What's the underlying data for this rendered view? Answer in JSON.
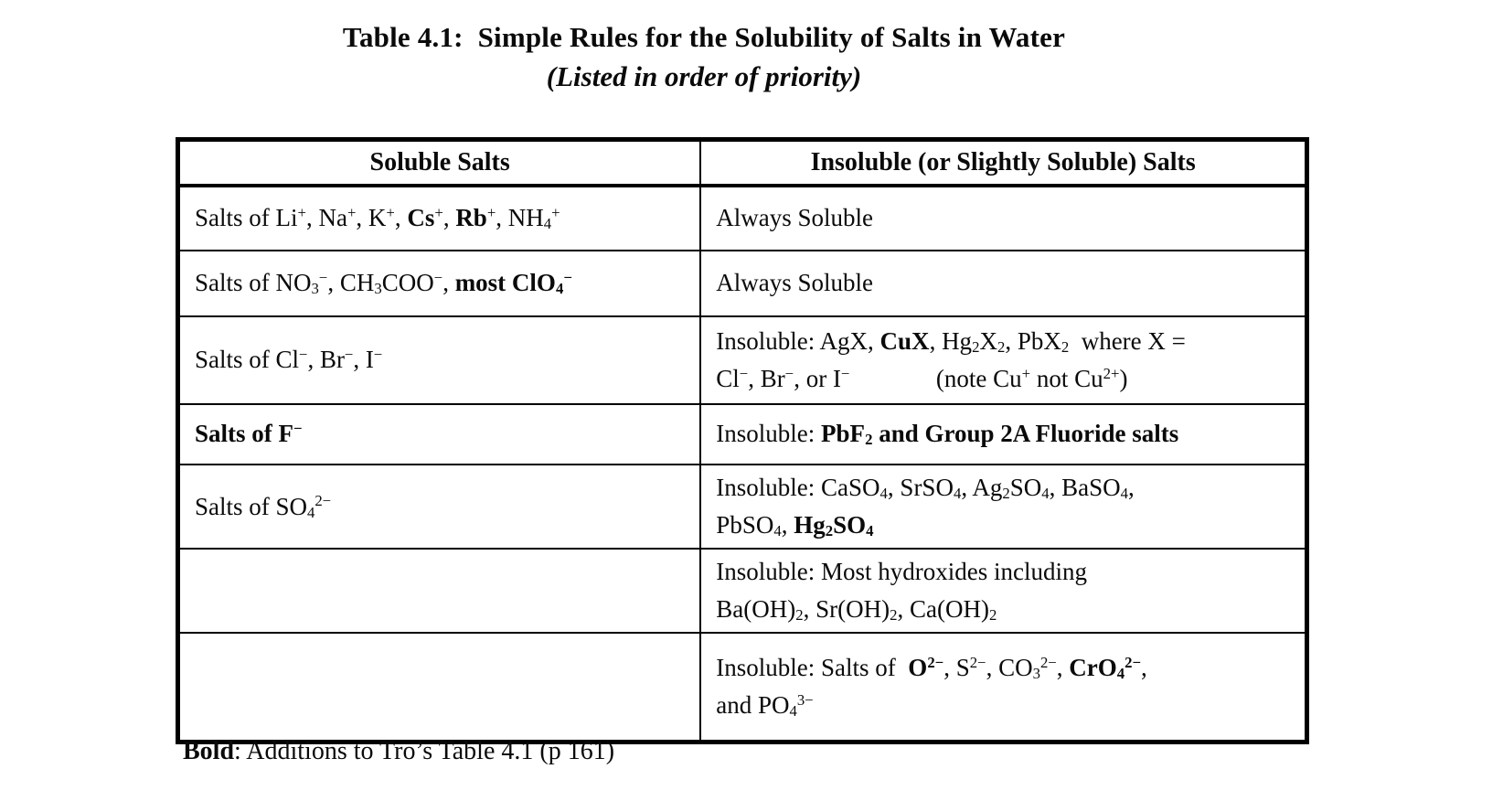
{
  "title": {
    "line1": "Table 4.1:  Simple Rules for the Solubility of Salts in Water",
    "line2": "(Listed in order of priority)"
  },
  "table": {
    "headers": [
      "Soluble Salts",
      "Insoluble (or Slightly Soluble) Salts"
    ],
    "rows": [
      {
        "left": [
          {
            "t": "Salts of Li"
          },
          {
            "t": "+",
            "sup": true
          },
          {
            "t": ", Na"
          },
          {
            "t": "+",
            "sup": true
          },
          {
            "t": ", K"
          },
          {
            "t": "+",
            "sup": true
          },
          {
            "t": ", "
          },
          {
            "t": "Cs",
            "b": true
          },
          {
            "t": "+",
            "sup": true
          },
          {
            "t": ", "
          },
          {
            "t": "Rb",
            "b": true
          },
          {
            "t": "+",
            "sup": true
          },
          {
            "t": ", NH"
          },
          {
            "t": "4",
            "sub": true
          },
          {
            "t": "+",
            "sup": true
          }
        ],
        "right": [
          {
            "t": "Always Soluble"
          }
        ]
      },
      {
        "left": [
          {
            "t": "Salts of NO"
          },
          {
            "t": "3",
            "sub": true
          },
          {
            "t": "−",
            "sup": true
          },
          {
            "t": ", CH"
          },
          {
            "t": "3",
            "sub": true
          },
          {
            "t": "COO"
          },
          {
            "t": "−",
            "sup": true
          },
          {
            "t": ", "
          },
          {
            "t": "most ClO",
            "b": true
          },
          {
            "t": "4",
            "sub": true,
            "b": true
          },
          {
            "t": "−",
            "sup": true,
            "b": true
          }
        ],
        "right": [
          {
            "t": "Always Soluble"
          }
        ]
      },
      {
        "left": [
          {
            "t": "Salts of Cl"
          },
          {
            "t": "−",
            "sup": true
          },
          {
            "t": ", Br"
          },
          {
            "t": "−",
            "sup": true
          },
          {
            "t": ", I"
          },
          {
            "t": "−",
            "sup": true
          }
        ],
        "right": [
          {
            "t": "Insoluble: AgX, "
          },
          {
            "t": "CuX",
            "b": true
          },
          {
            "t": ", Hg"
          },
          {
            "t": "2",
            "sub": true
          },
          {
            "t": "X"
          },
          {
            "t": "2",
            "sub": true
          },
          {
            "t": ", PbX"
          },
          {
            "t": "2",
            "sub": true
          },
          {
            "t": "  where X ="
          },
          {
            "br": true
          },
          {
            "t": "Cl"
          },
          {
            "t": "−",
            "sup": true
          },
          {
            "t": ", Br"
          },
          {
            "t": "−",
            "sup": true
          },
          {
            "t": ", or I"
          },
          {
            "t": "−",
            "sup": true
          },
          {
            "t": "              "
          },
          {
            "t": "(note Cu"
          },
          {
            "t": "+",
            "sup": true
          },
          {
            "t": " not Cu"
          },
          {
            "t": "2+",
            "sup": true
          },
          {
            "t": ")"
          }
        ]
      },
      {
        "left": [
          {
            "t": "Salts of F",
            "b": true
          },
          {
            "t": "−",
            "sup": true,
            "b": true
          }
        ],
        "right": [
          {
            "t": "Insoluble: "
          },
          {
            "t": "PbF",
            "b": true
          },
          {
            "t": "2",
            "sub": true,
            "b": true
          },
          {
            "t": " and Group 2A Fluoride salts",
            "b": true
          }
        ]
      },
      {
        "left": [
          {
            "t": "Salts of SO"
          },
          {
            "t": "4",
            "sub": true
          },
          {
            "t": "2−",
            "sup": true
          }
        ],
        "right": [
          {
            "t": "Insoluble: CaSO"
          },
          {
            "t": "4",
            "sub": true
          },
          {
            "t": ", SrSO"
          },
          {
            "t": "4",
            "sub": true
          },
          {
            "t": ", Ag"
          },
          {
            "t": "2",
            "sub": true
          },
          {
            "t": "SO"
          },
          {
            "t": "4",
            "sub": true
          },
          {
            "t": ", BaSO"
          },
          {
            "t": "4",
            "sub": true
          },
          {
            "t": ","
          },
          {
            "br": true
          },
          {
            "t": "PbSO"
          },
          {
            "t": "4",
            "sub": true
          },
          {
            "t": ", "
          },
          {
            "t": "Hg",
            "b": true
          },
          {
            "t": "2",
            "sub": true,
            "b": true
          },
          {
            "t": "SO",
            "b": true
          },
          {
            "t": "4",
            "sub": true,
            "b": true
          }
        ]
      },
      {
        "left": [],
        "right": [
          {
            "t": "Insoluble: Most hydroxides including"
          },
          {
            "br": true
          },
          {
            "t": "Ba(OH)"
          },
          {
            "t": "2",
            "sub": true
          },
          {
            "t": ", Sr(OH)"
          },
          {
            "t": "2",
            "sub": true
          },
          {
            "t": ", Ca(OH)"
          },
          {
            "t": "2",
            "sub": true
          }
        ]
      },
      {
        "left": [],
        "right": [
          {
            "t": "Insoluble: Salts of  "
          },
          {
            "t": "O",
            "b": true
          },
          {
            "t": "2−",
            "sup": true,
            "b": true
          },
          {
            "t": ", S"
          },
          {
            "t": "2−",
            "sup": true
          },
          {
            "t": ", CO"
          },
          {
            "t": "3",
            "sub": true
          },
          {
            "t": "2−",
            "sup": true
          },
          {
            "t": ", "
          },
          {
            "t": "CrO",
            "b": true
          },
          {
            "t": "4",
            "sub": true,
            "b": true
          },
          {
            "t": "2−",
            "sup": true,
            "b": true
          },
          {
            "t": ","
          },
          {
            "br": true
          },
          {
            "t": "and PO"
          },
          {
            "t": "4",
            "sub": true
          },
          {
            "t": "3−",
            "sup": true
          }
        ]
      }
    ]
  },
  "footnote": [
    {
      "t": "Bold",
      "b": true
    },
    {
      "t": ": Additions to Tro’s Table 4.1 (p 161)"
    }
  ]
}
